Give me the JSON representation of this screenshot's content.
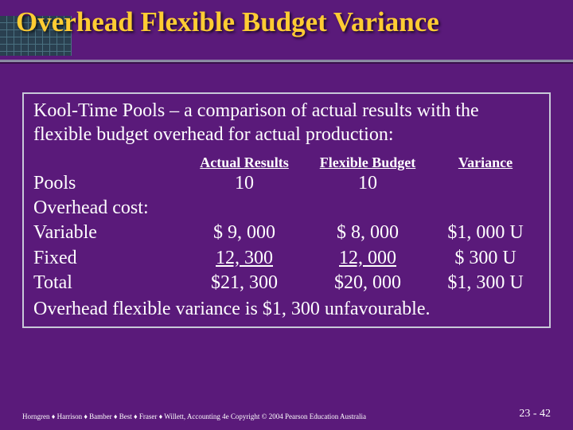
{
  "slide": {
    "title": "Overhead Flexible Budget Variance",
    "intro": "Kool-Time Pools – a comparison of actual results with the flexible budget overhead for actual production:",
    "conclusion": "Overhead flexible variance is $1, 300 unfavourable.",
    "background_color": "#5a1a7a",
    "title_color": "#ffcc33",
    "text_color": "#ffffff"
  },
  "table": {
    "headers": {
      "actual": "Actual Results",
      "budget": "Flexible Budget",
      "variance": "Variance"
    },
    "rows": [
      {
        "label": "Pools",
        "actual": "10",
        "budget": "10",
        "variance": "",
        "underline": false
      },
      {
        "label": "Overhead cost:",
        "actual": "",
        "budget": "",
        "variance": "",
        "underline": false
      },
      {
        "label": "Variable",
        "actual": "$  9, 000",
        "budget": "$  8, 000",
        "variance": "$1, 000 U",
        "underline": false
      },
      {
        "label": "Fixed",
        "actual": "  12, 300  ",
        "budget": "  12, 000  ",
        "variance": "$   300 U",
        "underline": true
      },
      {
        "label": "Total",
        "actual": "$21, 300",
        "budget": "$20, 000",
        "variance": "$1, 300 U",
        "underline": false
      }
    ]
  },
  "footer": {
    "attribution": "Horngren ♦ Harrison ♦ Bamber ♦ Best ♦ Fraser ♦ Willett, Accounting 4e Copyright © 2004 Pearson Education Australia",
    "page": "23 - 42"
  }
}
